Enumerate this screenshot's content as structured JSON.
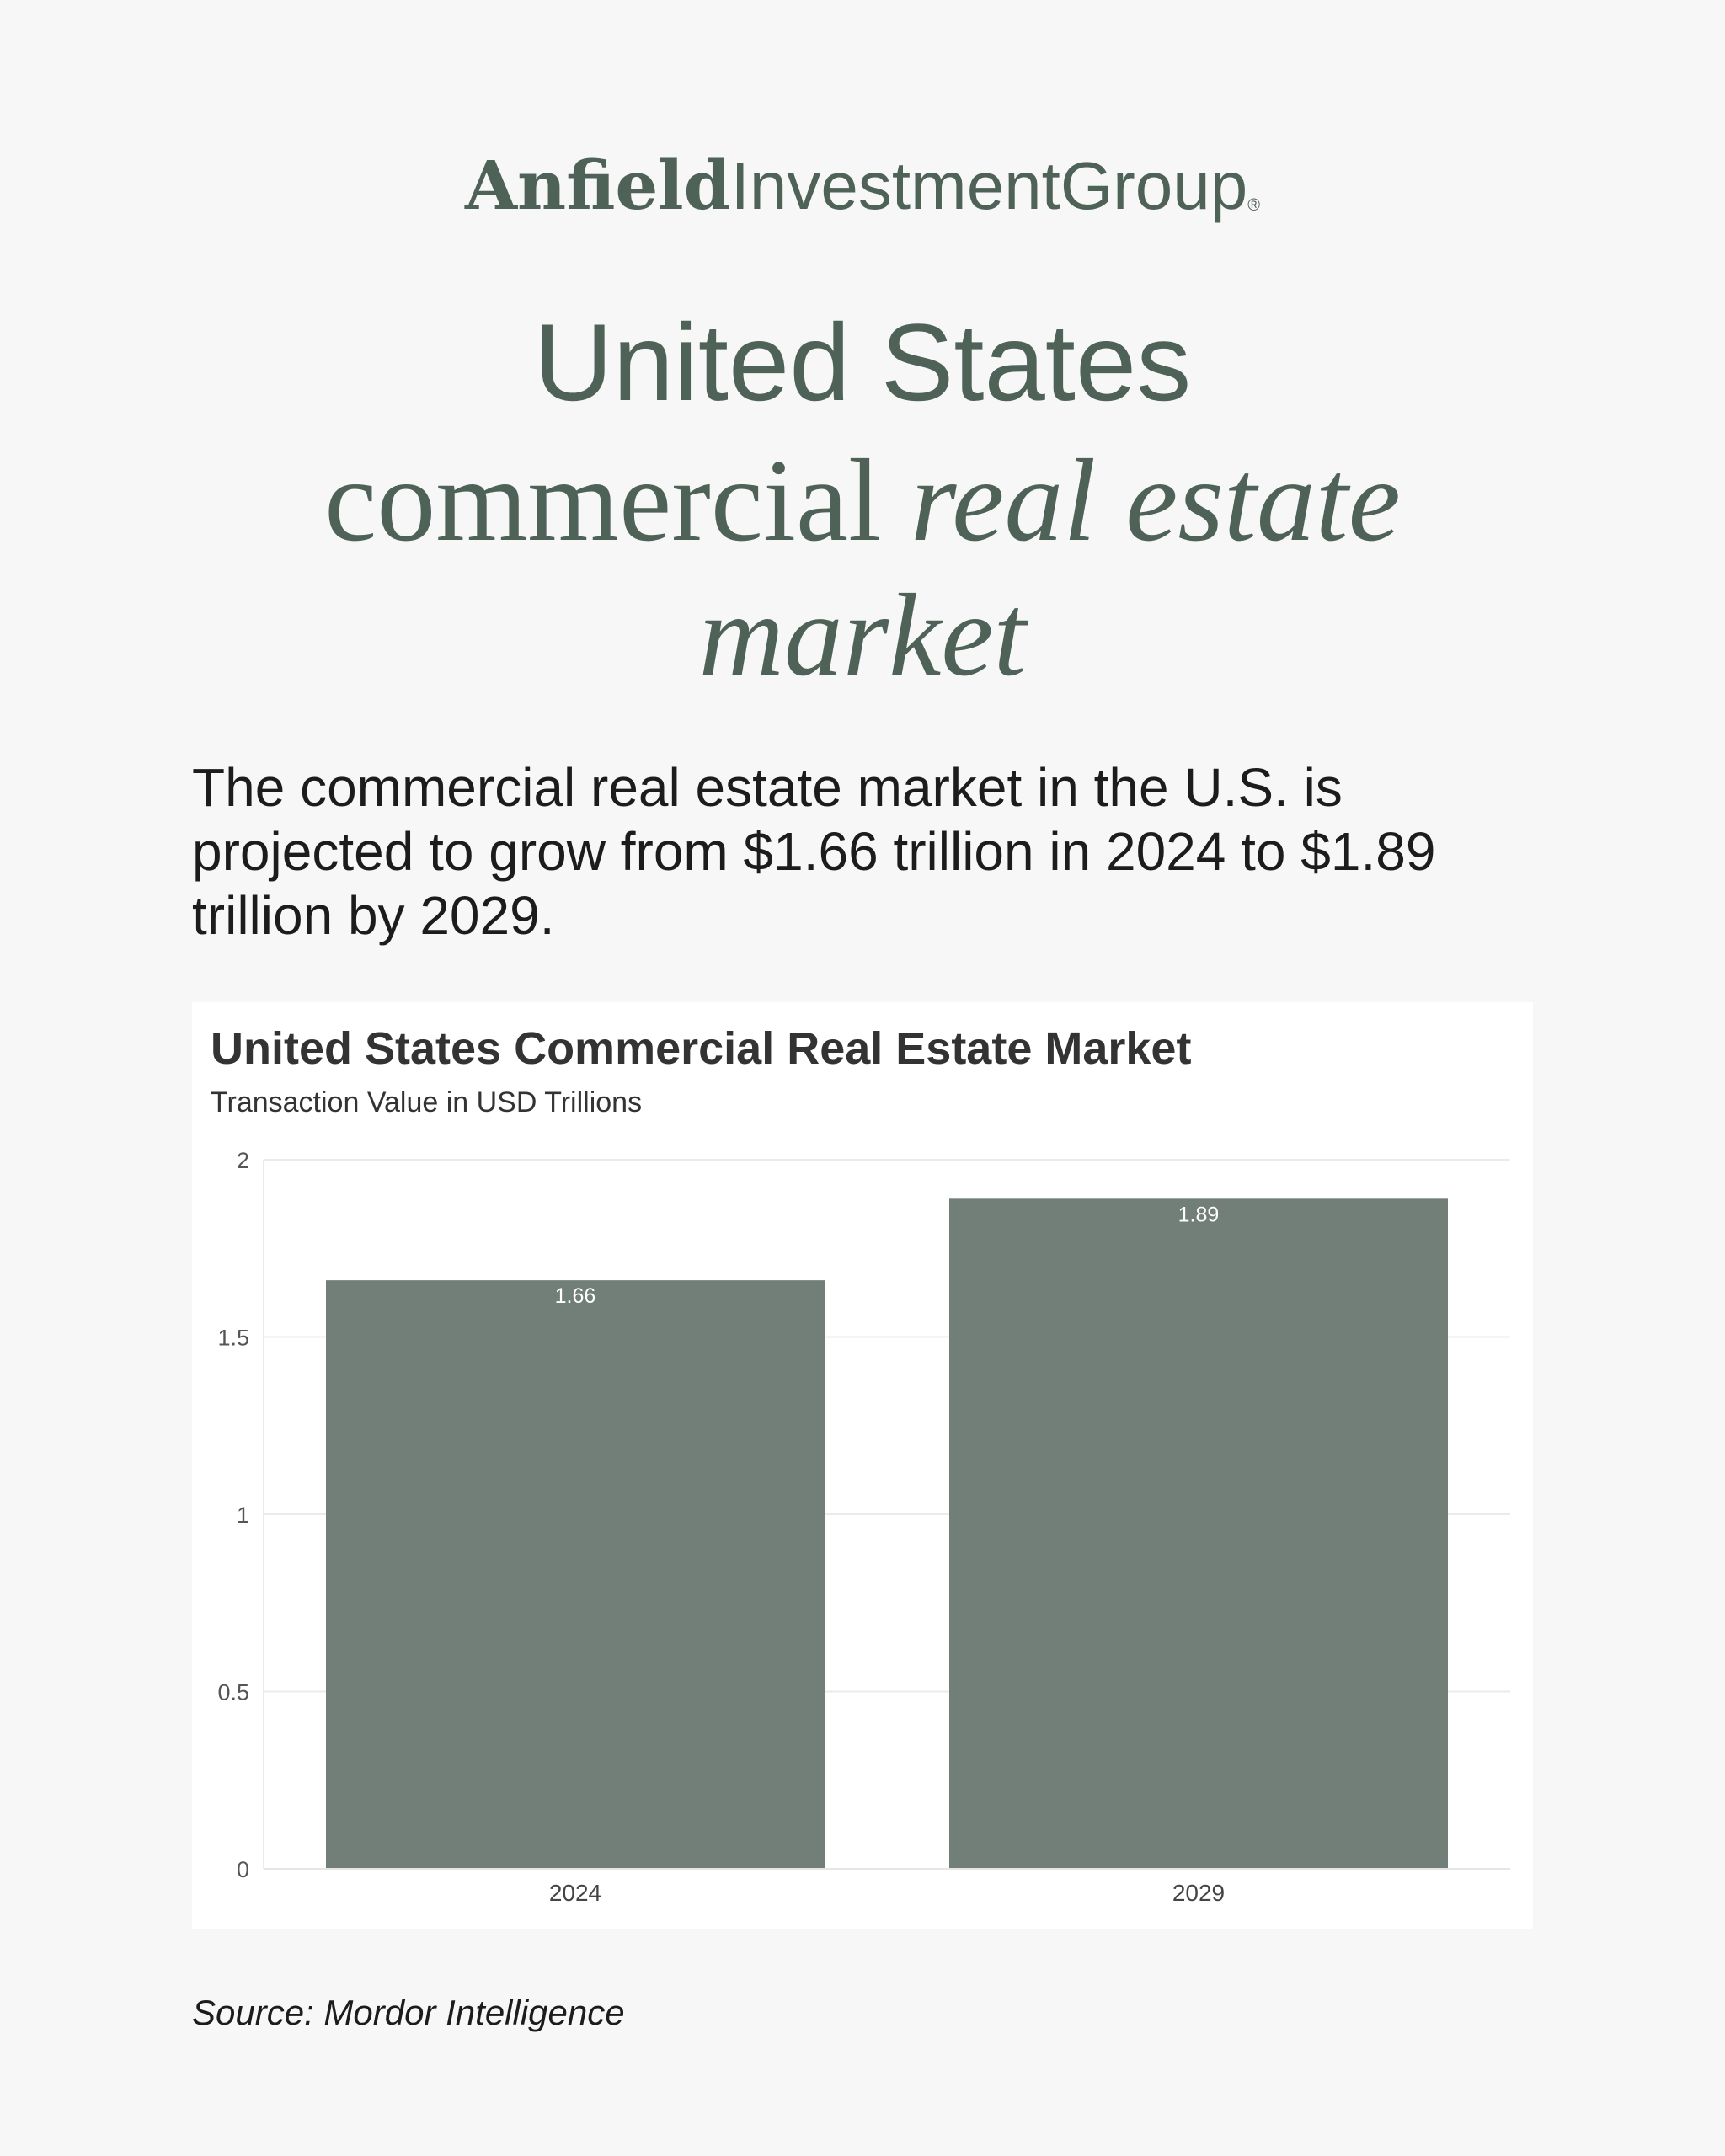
{
  "logo": {
    "part1": "Anfield",
    "part2": "InvestmentGroup",
    "mark": "®"
  },
  "heading": {
    "line1": "United States",
    "line2_plain": "commercial ",
    "line2_italic": "real estate",
    "line3_italic": "market"
  },
  "description": "The commercial real estate market in the U.S. is projected to grow from $1.66 trillion in 2024 to $1.89 trillion by 2029.",
  "colors": {
    "brand": "#4e6258",
    "bar": "#727e78",
    "background": "#f7f7f7"
  },
  "chart_data": {
    "type": "bar",
    "title": "United States Commercial Real Estate Market",
    "subtitle": "Transaction Value in USD Trillions",
    "xlabel": "",
    "ylabel": "",
    "categories": [
      "2024",
      "2029"
    ],
    "values": [
      1.66,
      1.89
    ],
    "data_labels": [
      "1.66",
      "1.89"
    ],
    "ylim": [
      0,
      2
    ],
    "yticks": [
      0,
      0.5,
      1,
      1.5,
      2
    ],
    "ytick_labels": [
      "0",
      "0.5",
      "1",
      "1.5",
      "2"
    ],
    "grid": true,
    "legend": "none"
  },
  "source": "Source: Mordor Intelligence"
}
